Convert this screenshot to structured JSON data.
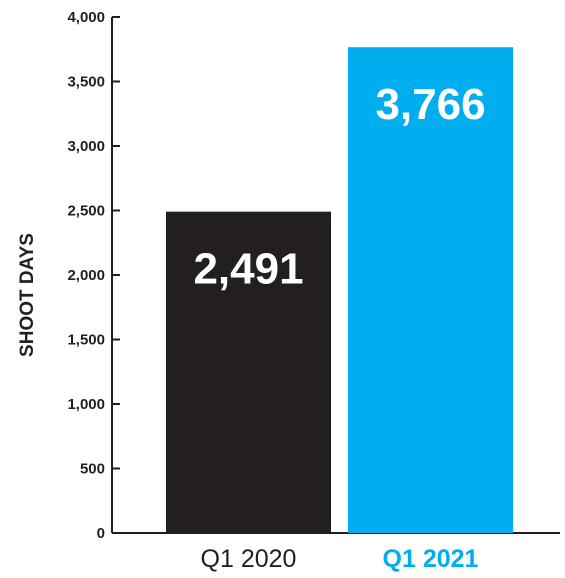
{
  "chart_data": {
    "type": "bar",
    "ylabel": "SHOOT DAYS",
    "ylim": [
      0,
      4000
    ],
    "yticks": [
      0,
      500,
      1000,
      1500,
      2000,
      2500,
      3000,
      3500,
      4000
    ],
    "ytick_labels": [
      "0",
      "500",
      "1,000",
      "1,500",
      "2,000",
      "2,500",
      "3,000",
      "3,500",
      "4,000"
    ],
    "categories": [
      "Q1 2020",
      "Q1 2021"
    ],
    "values": [
      2491,
      3766
    ],
    "value_labels": [
      "2,491",
      "3,766"
    ],
    "bar_colors": [
      "#231f20",
      "#00aeef"
    ],
    "category_label_colors": [
      "#231f20",
      "#00aeef"
    ],
    "grid": false,
    "legend": false
  }
}
